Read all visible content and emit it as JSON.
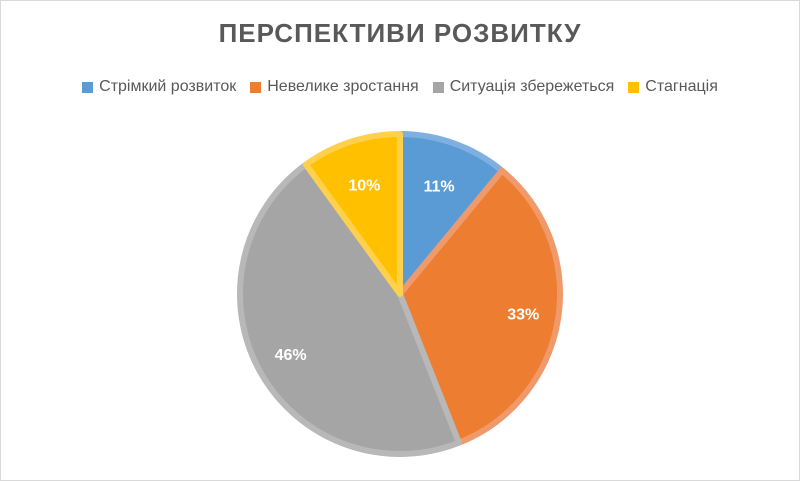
{
  "chart_data": {
    "type": "pie",
    "title": "ПЕРСПЕКТИВИ РОЗВИТКУ",
    "categories": [
      "Стрімкий розвиток",
      "Невелике зростання",
      "Ситуація збережеться",
      "Стагнація"
    ],
    "values": [
      11,
      33,
      46,
      10
    ],
    "labels": [
      "11%",
      "33%",
      "46%",
      "10%"
    ],
    "colors": [
      "#5B9BD5",
      "#ED7D31",
      "#A5A5A5",
      "#FFC000"
    ],
    "border_colors": [
      "#7FAFE0",
      "#F0996A",
      "#B8B8B8",
      "#FFD04D"
    ],
    "legend_position": "top"
  }
}
